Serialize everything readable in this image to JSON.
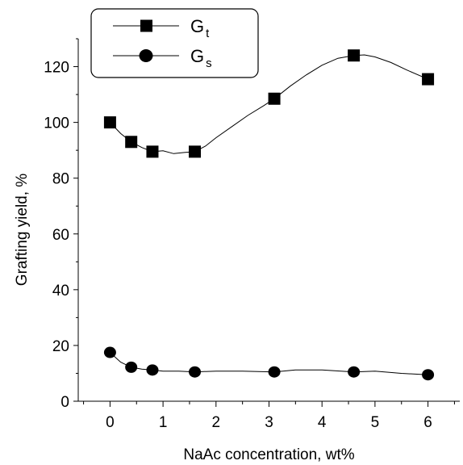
{
  "chart_data": {
    "type": "line",
    "xlabel": "NaAc concentration, wt%",
    "ylabel": "Grafting yield, %",
    "xlim": [
      -0.6,
      6.6
    ],
    "ylim": [
      0,
      130
    ],
    "xticks": [
      0,
      1,
      2,
      3,
      4,
      5,
      6
    ],
    "yticks": [
      0,
      20,
      40,
      60,
      80,
      100,
      120
    ],
    "xtick_labels": [
      "0",
      "1",
      "2",
      "3",
      "4",
      "5",
      "6"
    ],
    "ytick_labels": [
      "0",
      "20",
      "40",
      "60",
      "80",
      "100",
      "120"
    ],
    "grid": false,
    "legend_position": "top-left",
    "series": [
      {
        "name": "Gt",
        "name_main": "G",
        "name_sub": "t",
        "marker": "square",
        "x": [
          0,
          0.4,
          0.8,
          1.6,
          3.1,
          4.6,
          6.0
        ],
        "y": [
          100,
          93,
          89.5,
          89.5,
          108.5,
          124,
          115.5
        ],
        "curve_x": [
          0,
          0.2,
          0.4,
          0.6,
          0.8,
          1.0,
          1.2,
          1.4,
          1.6,
          1.8,
          2.0,
          2.3,
          2.6,
          2.9,
          3.1,
          3.4,
          3.7,
          4.0,
          4.3,
          4.6,
          4.8,
          5.0,
          5.3,
          5.6,
          6.0
        ],
        "curve_y": [
          100,
          96,
          93,
          91,
          89.5,
          89.8,
          88.8,
          89.2,
          89.5,
          91.5,
          94.5,
          98.5,
          102.5,
          106,
          108.5,
          113,
          117,
          120.5,
          123,
          124,
          124.2,
          123.5,
          121.5,
          118.8,
          115.5
        ]
      },
      {
        "name": "Gs",
        "name_main": "G",
        "name_sub": "s",
        "marker": "circle",
        "x": [
          0,
          0.4,
          0.8,
          1.6,
          3.1,
          4.6,
          6.0
        ],
        "y": [
          17.5,
          12.2,
          11.2,
          10.5,
          10.5,
          10.5,
          9.5
        ],
        "curve_x": [
          0,
          0.2,
          0.4,
          0.6,
          0.8,
          1.0,
          1.3,
          1.6,
          2.0,
          2.5,
          3.1,
          3.5,
          4.0,
          4.6,
          5.0,
          5.5,
          6.0
        ],
        "curve_y": [
          17.5,
          14,
          12.2,
          11.5,
          11.2,
          10.8,
          10.8,
          10.5,
          10.8,
          10.8,
          10.5,
          11.2,
          11.2,
          10.5,
          10.8,
          10,
          9.5
        ]
      }
    ]
  }
}
